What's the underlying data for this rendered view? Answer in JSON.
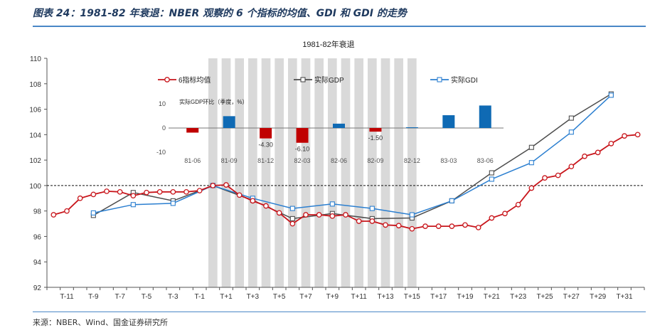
{
  "figure_title": "图表 24：1981-82 年衰退：NBER 观察的 6 个指标的均值、GDI 和 GDI 的走势",
  "source": "来源：NBER、Wind、国金证券研究所",
  "colors": {
    "avg6": "#c8151b",
    "gdp": "#4d4d4d",
    "gdi": "#2b7fd0",
    "recession_band": "#d9d9d9",
    "bar": "#0f6ab4",
    "bar_negative": "#c00000",
    "rule": "#4a87c6"
  },
  "chart_data": [
    {
      "type": "line",
      "title": "1981-82年衰退",
      "ylim": [
        92,
        110
      ],
      "yticks": [
        92,
        94,
        96,
        98,
        100,
        102,
        104,
        106,
        108,
        110
      ],
      "x": [
        "T-12",
        "T-11",
        "T-10",
        "T-9",
        "T-8",
        "T-7",
        "T-6",
        "T-5",
        "T-4",
        "T-3",
        "T-2",
        "T-1",
        "T",
        "T+1",
        "T+2",
        "T+3",
        "T+4",
        "T+5",
        "T+6",
        "T+7",
        "T+8",
        "T+9",
        "T+10",
        "T+11",
        "T+12",
        "T+13",
        "T+14",
        "T+15",
        "T+16",
        "T+17",
        "T+18",
        "T+19",
        "T+20",
        "T+21",
        "T+22",
        "T+23",
        "T+24",
        "T+25",
        "T+26",
        "T+27",
        "T+28",
        "T+29",
        "T+30",
        "T+31",
        "T+32"
      ],
      "xtick_labels": [
        "T-11",
        "T-9",
        "T-7",
        "T-5",
        "T-3",
        "T-1",
        "T+1",
        "T+3",
        "T+5",
        "T+7",
        "T+9",
        "T+11",
        "T+13",
        "T+15",
        "T+17",
        "T+19",
        "T+21",
        "T+23",
        "T+25",
        "T+27",
        "T+29",
        "T+31"
      ],
      "reference_line": 100,
      "recession_shading": [
        "T",
        "T+15"
      ],
      "series": [
        {
          "name": "6指标均值",
          "marker": "circle",
          "x": [
            "T-12",
            "T-11",
            "T-10",
            "T-9",
            "T-8",
            "T-7",
            "T-6",
            "T-5",
            "T-4",
            "T-3",
            "T-2",
            "T-1",
            "T",
            "T+1",
            "T+2",
            "T+3",
            "T+4",
            "T+5",
            "T+6",
            "T+7",
            "T+8",
            "T+9",
            "T+10",
            "T+11",
            "T+12",
            "T+13",
            "T+14",
            "T+15",
            "T+16",
            "T+17",
            "T+18",
            "T+19",
            "T+20",
            "T+21",
            "T+22",
            "T+23",
            "T+24",
            "T+25",
            "T+26",
            "T+27",
            "T+28",
            "T+29",
            "T+30",
            "T+31",
            "T+32"
          ],
          "values": [
            97.7,
            98.0,
            99.0,
            99.3,
            99.55,
            99.5,
            99.2,
            99.45,
            99.5,
            99.5,
            99.5,
            99.6,
            100.0,
            100.05,
            99.25,
            98.8,
            98.4,
            97.85,
            97.0,
            97.7,
            97.7,
            97.6,
            97.7,
            97.2,
            97.2,
            96.9,
            96.85,
            96.6,
            96.8,
            96.8,
            96.8,
            96.9,
            96.7,
            97.45,
            97.8,
            98.5,
            99.8,
            100.6,
            100.8,
            101.5,
            102.3,
            102.6,
            103.3,
            103.9,
            104.0
          ]
        },
        {
          "name": "实际GDP",
          "marker": "square",
          "x": [
            "T-9",
            "T-6",
            "T-3",
            "T",
            "T+3",
            "T+6",
            "T+9",
            "T+12",
            "T+15",
            "T+18",
            "T+21",
            "T+24",
            "T+27",
            "T+30"
          ],
          "values": [
            97.65,
            99.45,
            98.8,
            100.0,
            98.85,
            97.4,
            97.8,
            97.4,
            97.45,
            98.8,
            101.0,
            103.0,
            105.3,
            107.2
          ]
        },
        {
          "name": "实际GDI",
          "marker": "square",
          "x": [
            "T-9",
            "T-6",
            "T-3",
            "T",
            "T+3",
            "T+6",
            "T+9",
            "T+12",
            "T+15",
            "T+18",
            "T+21",
            "T+24",
            "T+27",
            "T+30"
          ],
          "values": [
            97.85,
            98.5,
            98.6,
            100.0,
            99.0,
            98.2,
            98.55,
            98.2,
            97.7,
            98.8,
            100.5,
            101.8,
            104.2,
            107.1
          ]
        }
      ]
    },
    {
      "type": "bar",
      "title": "实际GDP环比（季度，%）",
      "categories": [
        "81-06",
        "81-09",
        "81-12",
        "82-03",
        "82-06",
        "82-09",
        "82-12",
        "83-03",
        "83-06"
      ],
      "values": [
        -1.9,
        4.9,
        -4.3,
        -6.1,
        1.8,
        -1.5,
        0.3,
        5.3,
        9.3
      ],
      "data_labels": [
        "",
        "",
        "-4.30",
        "-6.10",
        "",
        "-1.50",
        "",
        "",
        ""
      ],
      "ylim": [
        -10,
        10
      ],
      "yticks": [
        -10,
        0,
        10
      ]
    }
  ]
}
